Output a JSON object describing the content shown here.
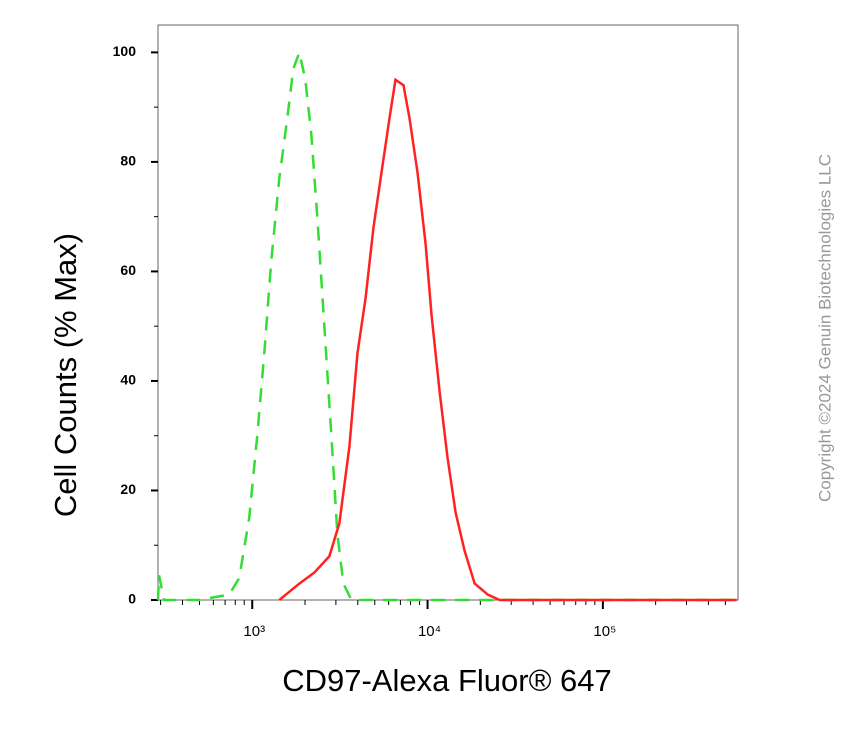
{
  "chart_data": {
    "type": "line",
    "xlabel": "CD97-Alexa Fluor® 647",
    "ylabel": "Cell Counts (% Max)",
    "watermark": "Copyright ©2024 Genuin Biotechnologies LLC",
    "xscale": "log",
    "xlim": [
      290,
      590000
    ],
    "ylim": [
      0,
      105
    ],
    "xticks": [
      {
        "value": 1000,
        "label": "10³"
      },
      {
        "value": 10000,
        "label": "10⁴"
      },
      {
        "value": 100000,
        "label": "10⁵"
      }
    ],
    "xminorticks": [
      300,
      400,
      500,
      600,
      700,
      800,
      900,
      2000,
      3000,
      4000,
      5000,
      6000,
      7000,
      8000,
      9000,
      20000,
      30000,
      40000,
      50000,
      60000,
      70000,
      80000,
      90000,
      200000,
      300000,
      400000,
      500000
    ],
    "yticks": [
      0,
      20,
      40,
      60,
      80,
      100
    ],
    "yminorticks": [
      10,
      30,
      50,
      70,
      90
    ],
    "series": [
      {
        "color": "#33dd33",
        "dashed": true,
        "x": [
          290,
          294,
          314,
          498,
          739,
          843,
          961,
          1068,
          1171,
          1284,
          1427,
          1585,
          1715,
          1857,
          2009,
          2173,
          2350,
          2578,
          2827,
          3060,
          3311,
          3680,
          6918,
          580000
        ],
        "values": [
          0,
          4.5,
          0,
          0,
          1,
          4,
          15,
          30,
          45,
          62,
          77,
          88,
          97,
          100,
          95,
          85,
          70,
          50,
          30,
          12,
          3,
          0,
          0,
          0
        ]
      },
      {
        "color": "#ff2222",
        "dashed": false,
        "x": [
          1427,
          1626,
          1857,
          2259,
          2754,
          3140,
          3582,
          3981,
          4425,
          4914,
          5458,
          6067,
          6561,
          7291,
          7888,
          8770,
          9748,
          10540,
          11720,
          13000,
          14450,
          16260,
          18570,
          22030,
          25770,
          580000
        ],
        "values": [
          0,
          1.5,
          3,
          5,
          8,
          14,
          28,
          45,
          55,
          68,
          78,
          88,
          95,
          94,
          88,
          78,
          65,
          52,
          38,
          26,
          16,
          9,
          3,
          1,
          0,
          0
        ]
      }
    ]
  }
}
